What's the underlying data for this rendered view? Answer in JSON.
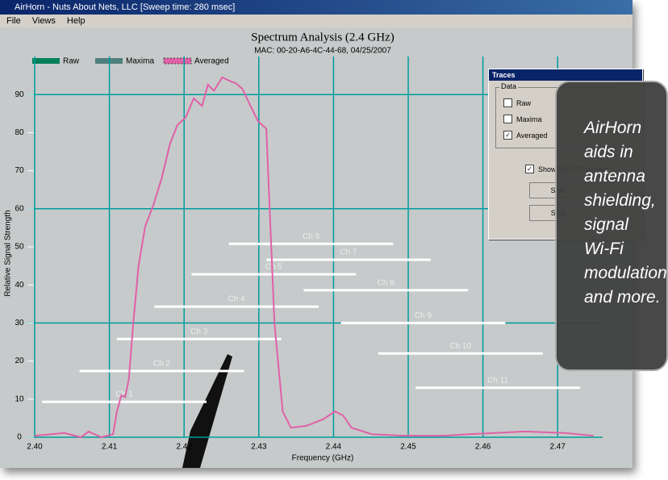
{
  "window": {
    "title": "AirHorn - Nuts About Nets, LLC   [Sweep time: 280 msec]",
    "menu": [
      "File",
      "Views",
      "Help"
    ]
  },
  "chart_data": {
    "type": "line",
    "title": "Spectrum Analysis (2.4 GHz)",
    "subtitle": "MAC: 00-20-A6-4C-44-68, 04/25/2007",
    "x_label": "Frequency (GHz)",
    "y_label": "Relative Signal Strength",
    "legend": [
      {
        "name": "Raw",
        "color": "#00805a"
      },
      {
        "name": "Maxima",
        "color": "#4f8080"
      },
      {
        "name": "Averaged",
        "color": "#e060a8"
      }
    ],
    "series": [
      {
        "color": "#e060a8",
        "x": [
          2.4,
          2.404,
          2.4062,
          2.4072,
          2.4089,
          2.4105,
          2.411,
          2.4116,
          2.4121,
          2.4126,
          2.4132,
          2.4139,
          2.4148,
          2.4159,
          2.417,
          2.4181,
          2.4191,
          2.4202,
          2.4213,
          2.4224,
          2.4232,
          2.424,
          2.4251,
          2.4262,
          2.4269,
          2.4278,
          2.4289,
          2.4299,
          2.431,
          2.4321,
          2.4332,
          2.4343,
          2.4364,
          2.4386,
          2.4402,
          2.4413,
          2.4424,
          2.4451,
          2.4494,
          2.4548,
          2.4581,
          2.4656,
          2.471,
          2.4748
        ],
        "values": [
          0.4,
          1.1,
          0,
          1.5,
          0,
          0.8,
          6.8,
          11,
          10.6,
          15.3,
          30,
          45,
          55.5,
          61,
          68,
          77,
          82,
          84,
          89,
          87,
          92.6,
          91,
          94.5,
          93.5,
          93,
          91.5,
          87,
          83,
          81,
          30,
          6.8,
          2.5,
          3,
          4.7,
          6.8,
          5.7,
          2.5,
          0.8,
          0.4,
          0.4,
          0.8,
          1.5,
          1.1,
          0.4
        ]
      }
    ],
    "channels": [
      {
        "label": "Ch 1",
        "start": 2.401,
        "end": 2.423,
        "level": 9.3
      },
      {
        "label": "Ch 2",
        "start": 2.406,
        "end": 2.428,
        "level": 17.4
      },
      {
        "label": "Ch 3",
        "start": 2.411,
        "end": 2.433,
        "level": 25.8
      },
      {
        "label": "Ch 4",
        "start": 2.416,
        "end": 2.438,
        "level": 34.3
      },
      {
        "label": "Ch 5",
        "start": 2.421,
        "end": 2.443,
        "level": 42.8
      },
      {
        "label": "Ch 6",
        "start": 2.426,
        "end": 2.448,
        "level": 50.8
      },
      {
        "label": "Ch 7",
        "start": 2.431,
        "end": 2.453,
        "level": 46.6
      },
      {
        "label": "Ch 8",
        "start": 2.436,
        "end": 2.458,
        "level": 38.6
      },
      {
        "label": "Ch 9",
        "start": 2.441,
        "end": 2.463,
        "level": 30
      },
      {
        "label": "Ch 10",
        "start": 2.446,
        "end": 2.468,
        "level": 22
      },
      {
        "label": "Ch 11",
        "start": 2.451,
        "end": 2.473,
        "level": 13
      }
    ],
    "xlim": [
      2.399,
      2.476
    ],
    "ylim": [
      0,
      100
    ],
    "xticks": [
      {
        "value": 2.4,
        "label": "2.40"
      },
      2.41,
      2.42,
      2.43,
      2.44,
      2.45,
      2.46,
      2.47
    ],
    "yticks": [
      0,
      10,
      20,
      30,
      40,
      50,
      60,
      70,
      80,
      90
    ],
    "grid": true
  },
  "dialog": {
    "title": "Traces",
    "group": "Data",
    "options": [
      {
        "label": "Raw",
        "checked": false
      },
      {
        "label": "Maxima",
        "checked": false
      },
      {
        "label": "Averaged",
        "checked": true
      }
    ],
    "show_channels": "Show Wi-Fi Channels",
    "buttons": [
      "Start",
      "Stop"
    ]
  },
  "callout": [
    "AirHorn",
    "aids in",
    "antenna",
    "shielding,",
    "signal",
    "Wi-Fi",
    "modulation",
    "and more."
  ]
}
